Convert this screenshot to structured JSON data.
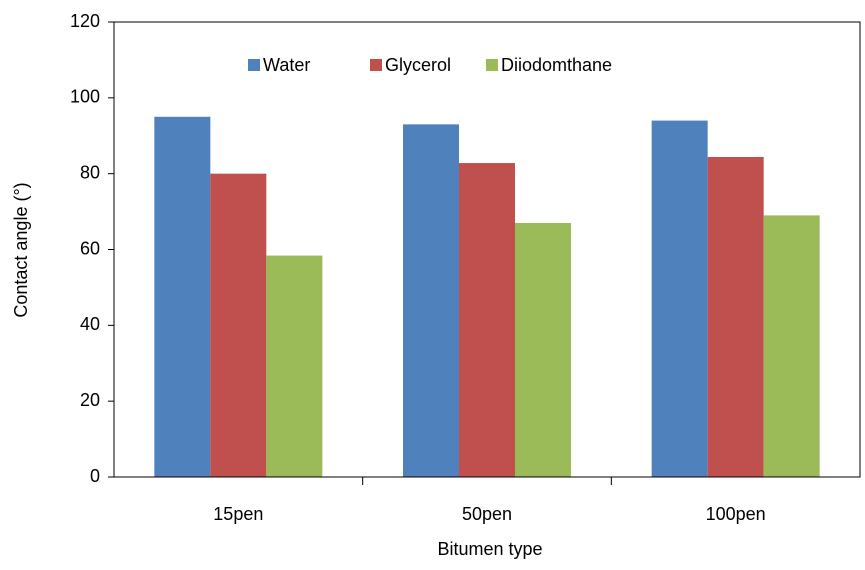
{
  "chart_data": {
    "type": "bar",
    "categories": [
      "15pen",
      "50pen",
      "100pen"
    ],
    "series": [
      {
        "name": "Water",
        "color": "#4f81bd",
        "values": [
          95,
          93,
          94
        ]
      },
      {
        "name": "Glycerol",
        "color": "#c0504d",
        "values": [
          80,
          82.8,
          84.4
        ]
      },
      {
        "name": "Diiodomthane",
        "color": "#9bbb59",
        "values": [
          58.4,
          67,
          69
        ]
      }
    ],
    "x_label": "Bitumen type",
    "y_label": "Contact angle (°)",
    "ylim": [
      0,
      120
    ],
    "yticks": [
      0,
      20,
      40,
      60,
      80,
      100,
      120
    ],
    "legend": "top"
  }
}
